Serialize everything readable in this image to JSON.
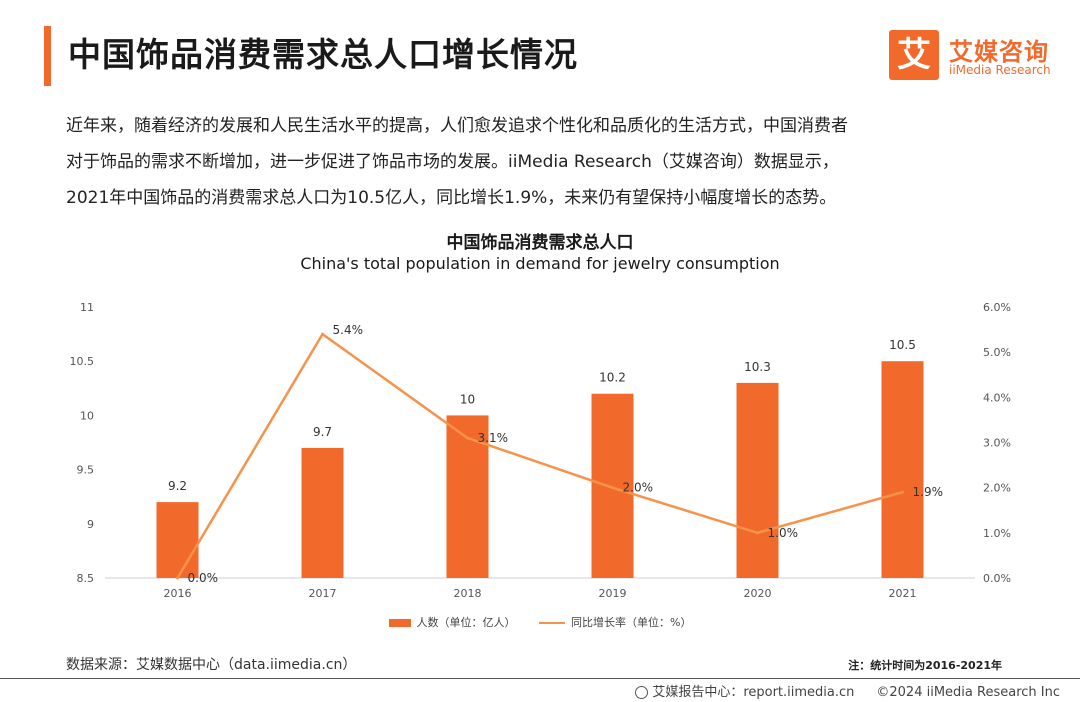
{
  "header": {
    "title": "中国饰品消费需求总人口增长情况",
    "logo_mark": "艾",
    "logo_cn": "艾媒咨询",
    "logo_en": "iiMedia Research"
  },
  "intro": {
    "line1": "近年来，随着经济的发展和人民生活水平的提高，人们愈发追求个性化和品质化的生活方式，中国消费者",
    "line2": "对于饰品的需求不断增加，进一步促进了饰品市场的发展。iiMedia Research（艾媒咨询）数据显示，",
    "line3": "2021年中国饰品的消费需求总人口为10.5亿人，同比增长1.9%，未来仍有望保持小幅度增长的态势。"
  },
  "chart_data": {
    "type": "bar+line",
    "title": "中国饰品消费需求总人口",
    "subtitle": "China's total population in demand for jewelry consumption",
    "categories": [
      "2016",
      "2017",
      "2018",
      "2019",
      "2020",
      "2021"
    ],
    "series": [
      {
        "name": "人数（单位：亿人）",
        "type": "bar",
        "axis": "left",
        "values": [
          9.2,
          9.7,
          10,
          10.2,
          10.3,
          10.5
        ],
        "labels": [
          "9.2",
          "9.7",
          "10",
          "10.2",
          "10.3",
          "10.5"
        ]
      },
      {
        "name": "同比增长率（单位：%）",
        "type": "line",
        "axis": "right",
        "values": [
          0.0,
          5.4,
          3.1,
          2.0,
          1.0,
          1.9
        ],
        "labels": [
          "0.0%",
          "5.4%",
          "3.1%",
          "2.0%",
          "1.0%",
          "1.9%"
        ]
      }
    ],
    "y_left": {
      "min": 8.5,
      "max": 11,
      "ticks": [
        "8.5",
        "9",
        "9.5",
        "10",
        "10.5",
        "11"
      ]
    },
    "y_right": {
      "min": 0,
      "max": 6,
      "ticks": [
        "0.0%",
        "1.0%",
        "2.0%",
        "3.0%",
        "4.0%",
        "5.0%",
        "6.0%"
      ]
    },
    "grid": false,
    "legend": "bottom",
    "colors": {
      "bar": "#f26a2b",
      "line": "#f7924a"
    }
  },
  "footer": {
    "source": "数据来源：艾媒数据中心（data.iimedia.cn）",
    "note": "注：统计时间为2016-2021年",
    "report": "艾媒报告中心：report.iimedia.cn",
    "copyright": "©2024  iiMedia Research  Inc"
  }
}
